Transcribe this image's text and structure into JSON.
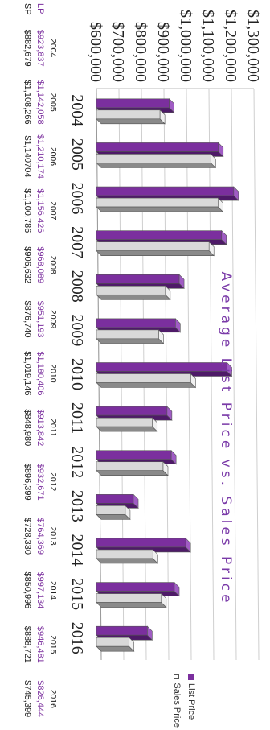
{
  "chart_data": {
    "type": "bar",
    "title": "Average List Price vs. Sales Price",
    "categories": [
      "2004",
      "2005",
      "2006",
      "2007",
      "2008",
      "2009",
      "2010",
      "2011",
      "2012",
      "2013",
      "2014",
      "2015",
      "2016"
    ],
    "series": [
      {
        "name": "List Price",
        "values": [
          923837,
          1142058,
          1210174,
          1156426,
          968089,
          951193,
          1180406,
          913842,
          932671,
          764369,
          997134,
          946481,
          826444
        ]
      },
      {
        "name": "Sales Price",
        "values": [
          882679,
          1108266,
          1140704,
          1100786,
          906632,
          876740,
          1019146,
          848980,
          896399,
          728330,
          850996,
          888721,
          745399
        ]
      }
    ],
    "ylim": [
      600000,
      1300000
    ],
    "y_ticks": [
      "$600,000",
      "$700,000",
      "$800,000",
      "$900,000",
      "$1,000,000",
      "$1,100,000",
      "$1,200,000",
      "$1,300,000"
    ],
    "x_ticks": [
      "2004",
      "2005",
      "2006",
      "2007",
      "2008",
      "2009",
      "2010",
      "2011",
      "2012",
      "2013",
      "2014",
      "2015",
      "2016"
    ],
    "legend_position": "right",
    "grid": true,
    "colors": {
      "list_price": "#7b2f9e",
      "sales_price": "#d9d9d9"
    }
  },
  "legend": {
    "list_price": "List Price",
    "sales_price": "Sales Price"
  },
  "table": {
    "years": [
      "2004",
      "2005",
      "2006",
      "2007",
      "2008",
      "2009",
      "2010",
      "2011",
      "2012",
      "2013",
      "2014",
      "2015",
      "2016"
    ],
    "lp_label": "LP",
    "sp_label": "SP",
    "lp_values": [
      "$923,837",
      "$1,142,058",
      "$1,210,174",
      "$1,156,426",
      "$968,089",
      "$951,193",
      "$1,180,406",
      "$913,842",
      "$932,671",
      "$764,369",
      "$997,134",
      "$946,481",
      "$826,444"
    ],
    "sp_values": [
      "$882,679",
      "$1,108,266",
      "$1,140704",
      "$1,100,786",
      "$906,632",
      "$876,740",
      "$1,019,146",
      "$848,980",
      "$896,399",
      "$728,330",
      "$850,996",
      "$888,721",
      "$745,399"
    ]
  }
}
